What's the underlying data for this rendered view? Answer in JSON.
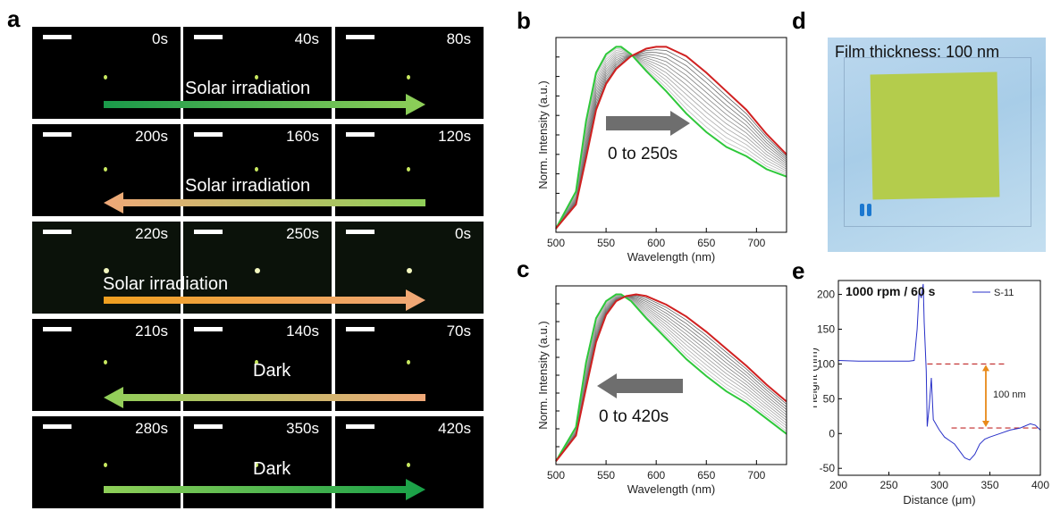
{
  "panel_a": {
    "letter": "a",
    "rows": [
      {
        "times": [
          "0s",
          "40s",
          "80s"
        ],
        "arrow_label": "Solar irradiation",
        "arrow_colors": [
          "#1a9a4a",
          "#8fcf58"
        ]
      },
      {
        "times": [
          "200s",
          "160s",
          "120s"
        ],
        "arrow_label": "Solar irradiation",
        "arrow_colors": [
          "#f0a878",
          "#8fcf58"
        ]
      },
      {
        "times": [
          "220s",
          "250s",
          "0s"
        ],
        "arrow_label": "Solar irradiation",
        "arrow_colors": [
          "#f0a020",
          "#f0a878"
        ]
      },
      {
        "times": [
          "210s",
          "140s",
          "70s"
        ],
        "arrow_label": "Dark",
        "arrow_colors": [
          "#8fcf58",
          "#f0a878"
        ]
      },
      {
        "times": [
          "280s",
          "350s",
          "420s"
        ],
        "arrow_label": "Dark",
        "arrow_colors": [
          "#8fcf58",
          "#18a048"
        ]
      }
    ]
  },
  "panel_b": {
    "letter": "b",
    "arrow_text": "0 to 250s"
  },
  "panel_c": {
    "letter": "c",
    "arrow_text": "0 to 420s"
  },
  "panel_d": {
    "letter": "d",
    "caption": "Film thickness: 100 nm"
  },
  "panel_e": {
    "letter": "e",
    "annotation_title": "1000 rpm / 60 s",
    "annotation_thickness": "100 nm"
  },
  "chart_data": [
    {
      "type": "line",
      "panel": "b",
      "xlabel": "Wavelength (nm)",
      "ylabel": "Norm. Intensity (a.u.)",
      "xlim": [
        500,
        730
      ],
      "xticks": [
        500,
        550,
        600,
        650,
        700
      ],
      "ylim": [
        0,
        1.05
      ],
      "series": [
        {
          "color": "#2ec83a",
          "x": [
            500,
            520,
            530,
            540,
            550,
            560,
            565,
            575,
            590,
            610,
            630,
            650,
            670,
            690,
            710,
            730
          ],
          "values": [
            0.02,
            0.22,
            0.6,
            0.86,
            0.96,
            1.0,
            1.0,
            0.96,
            0.87,
            0.76,
            0.64,
            0.54,
            0.46,
            0.41,
            0.34,
            0.3
          ]
        },
        {
          "color": "#d02020",
          "x": [
            500,
            520,
            530,
            540,
            550,
            560,
            575,
            590,
            600,
            610,
            630,
            650,
            670,
            690,
            710,
            730
          ],
          "values": [
            0.02,
            0.15,
            0.4,
            0.66,
            0.8,
            0.88,
            0.95,
            0.99,
            1.0,
            1.0,
            0.95,
            0.86,
            0.76,
            0.66,
            0.53,
            0.42
          ]
        }
      ]
    },
    {
      "type": "line",
      "panel": "c",
      "xlabel": "Wavelength (nm)",
      "ylabel": "Norm. Intensity (a.u.)",
      "xlim": [
        500,
        730
      ],
      "xticks": [
        500,
        550,
        600,
        650,
        700
      ],
      "ylim": [
        0,
        1.05
      ],
      "series": [
        {
          "color": "#2ec83a",
          "x": [
            500,
            520,
            530,
            540,
            550,
            560,
            565,
            575,
            590,
            610,
            630,
            650,
            670,
            690,
            710,
            730
          ],
          "values": [
            0.02,
            0.22,
            0.6,
            0.86,
            0.96,
            1.0,
            1.0,
            0.96,
            0.86,
            0.74,
            0.62,
            0.52,
            0.43,
            0.36,
            0.27,
            0.18
          ]
        },
        {
          "color": "#d02020",
          "x": [
            500,
            520,
            530,
            540,
            550,
            560,
            570,
            580,
            590,
            610,
            630,
            650,
            670,
            690,
            710,
            730
          ],
          "values": [
            0.02,
            0.17,
            0.45,
            0.72,
            0.88,
            0.96,
            0.99,
            1.0,
            0.99,
            0.94,
            0.87,
            0.78,
            0.68,
            0.58,
            0.47,
            0.37
          ]
        }
      ]
    },
    {
      "type": "line",
      "panel": "e",
      "xlabel": "Distance (μm)",
      "ylabel": "Height (nm)",
      "xlim": [
        200,
        400
      ],
      "xticks": [
        200,
        250,
        300,
        350,
        400
      ],
      "ylim": [
        -60,
        220
      ],
      "yticks": [
        -50,
        0,
        50,
        100,
        150,
        200
      ],
      "legend_position": "top-right",
      "series": [
        {
          "name": "S-11",
          "color": "#2830c8",
          "x": [
            200,
            220,
            240,
            260,
            270,
            275,
            278,
            280,
            282,
            284,
            285,
            287,
            288,
            290,
            292,
            294,
            296,
            298,
            300,
            305,
            310,
            315,
            320,
            325,
            330,
            335,
            340,
            345,
            350,
            360,
            370,
            380,
            390,
            395,
            400
          ],
          "values": [
            105,
            104,
            104,
            104,
            104,
            105,
            150,
            205,
            195,
            215,
            160,
            90,
            10,
            40,
            80,
            20,
            15,
            10,
            5,
            -5,
            -10,
            -15,
            -25,
            -35,
            -38,
            -30,
            -15,
            -8,
            -5,
            0,
            5,
            8,
            14,
            12,
            5
          ]
        }
      ],
      "reference_lines": [
        100,
        8
      ]
    }
  ]
}
